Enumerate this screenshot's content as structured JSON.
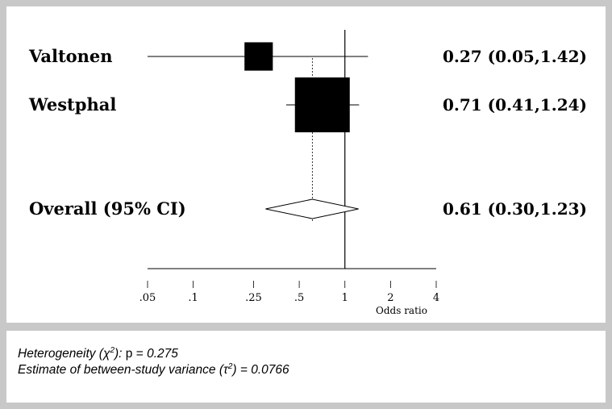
{
  "chart_data": {
    "type": "forest",
    "xscale": "log",
    "xlabel": "Odds ratio",
    "xlim": [
      0.05,
      4
    ],
    "xticks": [
      {
        "value": 0.05,
        "label": ".05"
      },
      {
        "value": 0.1,
        "label": ".1"
      },
      {
        "value": 0.25,
        "label": ".25"
      },
      {
        "value": 0.5,
        "label": ".5"
      },
      {
        "value": 1,
        "label": "1"
      },
      {
        "value": 2,
        "label": "2"
      },
      {
        "value": 4,
        "label": "4"
      }
    ],
    "null_line": 1,
    "pooled_line": 0.61,
    "studies": [
      {
        "name": "Valtonen",
        "or": 0.27,
        "lower": 0.05,
        "upper": 1.42,
        "weight": 0.15,
        "label": "0.27 (0.05,1.42)"
      },
      {
        "name": "Westphal",
        "or": 0.71,
        "lower": 0.41,
        "upper": 1.24,
        "weight": 0.85,
        "label": "0.71 (0.41,1.24)"
      }
    ],
    "overall": {
      "name": "Overall (95% CI)",
      "or": 0.61,
      "lower": 0.3,
      "upper": 1.23,
      "label": "0.61 (0.30,1.23)"
    }
  },
  "footer": {
    "heterogeneity_prefix": "Heterogeneity (",
    "chi_symbol": "χ",
    "heterogeneity_suffix": "): ",
    "heterogeneity_p_label": "p = ",
    "heterogeneity_p_value": "0.275",
    "variance_prefix": "Estimate of between-study variance (",
    "tau_symbol": "τ",
    "variance_suffix": ") = 0.0766",
    "squared": "2"
  }
}
